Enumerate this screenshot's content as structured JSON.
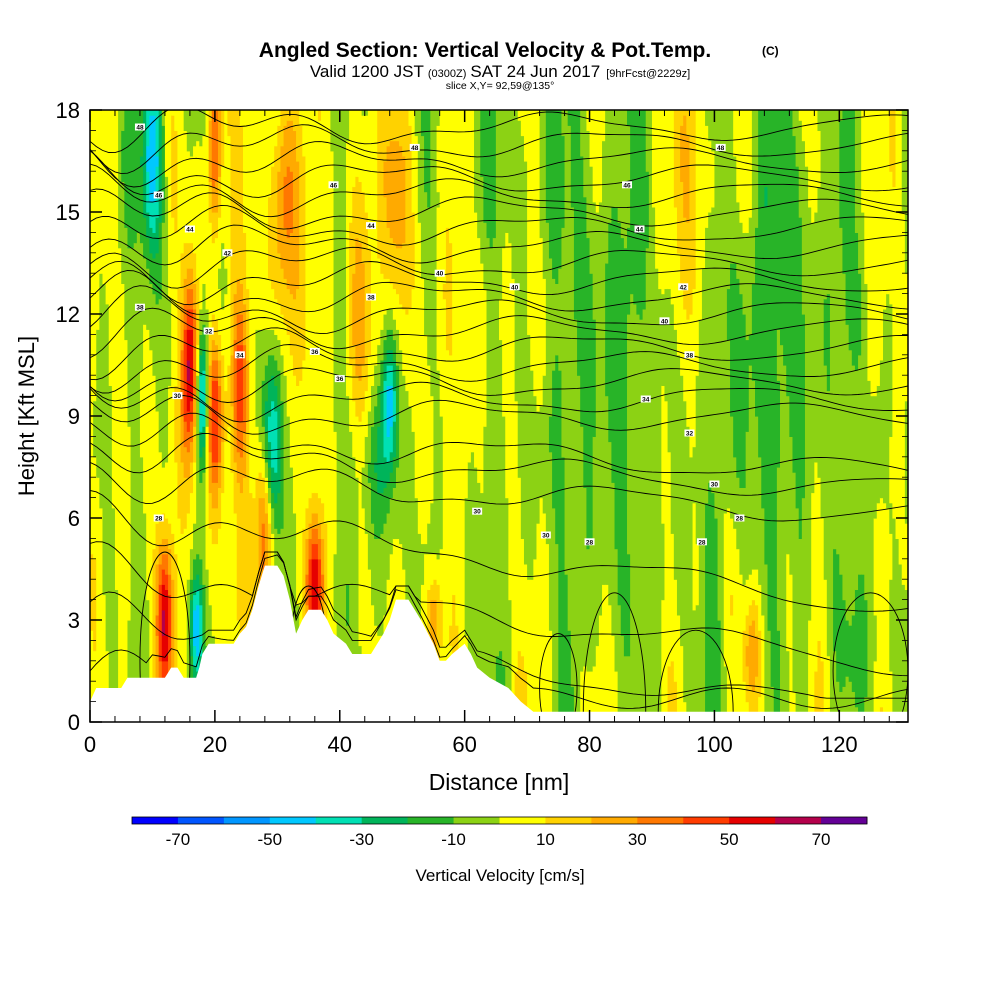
{
  "chart_data": {
    "type": "heatmap",
    "title": "Angled Section: Vertical Velocity & Pot.Temp.",
    "title_units": "(C)",
    "subtitle_prefix": "Valid 1200 JST",
    "subtitle_zulu": "(0300Z)",
    "subtitle_date": "SAT 24 Jun 2017",
    "subtitle_fcst": "[9hrFcst@2229z]",
    "slice_label": "slice X,Y= 92,59@135°",
    "xlabel": "Distance [nm]",
    "ylabel": "Height [Kft MSL]",
    "xlim": [
      0,
      131
    ],
    "ylim": [
      0,
      18
    ],
    "x_ticks": [
      0,
      20,
      40,
      60,
      80,
      100,
      120
    ],
    "y_ticks": [
      0,
      3,
      6,
      9,
      12,
      15,
      18
    ],
    "grid": false,
    "colorbar": {
      "label": "Vertical Velocity [cm/s]",
      "tick_values": [
        -70,
        -50,
        -30,
        -10,
        10,
        30,
        50,
        70
      ],
      "bins": [
        {
          "lo": -80,
          "hi": -70,
          "color": "#0000ff"
        },
        {
          "lo": -70,
          "hi": -60,
          "color": "#0055ff"
        },
        {
          "lo": -60,
          "hi": -50,
          "color": "#0096ff"
        },
        {
          "lo": -50,
          "hi": -40,
          "color": "#00c8ff"
        },
        {
          "lo": -40,
          "hi": -30,
          "color": "#00e0b4"
        },
        {
          "lo": -30,
          "hi": -20,
          "color": "#00b45a"
        },
        {
          "lo": -20,
          "hi": -10,
          "color": "#28b428"
        },
        {
          "lo": -10,
          "hi": 0,
          "color": "#8cd214"
        },
        {
          "lo": 0,
          "hi": 10,
          "color": "#ffff00"
        },
        {
          "lo": 10,
          "hi": 20,
          "color": "#ffd200"
        },
        {
          "lo": 20,
          "hi": 30,
          "color": "#ffaa00"
        },
        {
          "lo": 30,
          "hi": 40,
          "color": "#ff7800"
        },
        {
          "lo": 40,
          "hi": 50,
          "color": "#ff3c00"
        },
        {
          "lo": 50,
          "hi": 60,
          "color": "#e60000"
        },
        {
          "lo": 60,
          "hi": 70,
          "color": "#b4004b"
        },
        {
          "lo": 70,
          "hi": 80,
          "color": "#640096"
        }
      ]
    },
    "velocity_features": [
      {
        "x": 12,
        "z": 3.0,
        "sx": 0.9,
        "sz": 1.6,
        "w": 55
      },
      {
        "x": 10,
        "z": 16.5,
        "sx": 1.2,
        "sz": 2.0,
        "w": -45
      },
      {
        "x": 16,
        "z": 10.5,
        "sx": 1.0,
        "sz": 2.0,
        "w": 65
      },
      {
        "x": 18,
        "z": 9.5,
        "sx": 0.7,
        "sz": 1.5,
        "w": -55
      },
      {
        "x": 20,
        "z": 9.0,
        "sx": 1.0,
        "sz": 1.8,
        "w": 50
      },
      {
        "x": 20,
        "z": 17.0,
        "sx": 0.8,
        "sz": 2.0,
        "w": 55
      },
      {
        "x": 17,
        "z": 2.8,
        "sx": 0.8,
        "sz": 1.2,
        "w": -45
      },
      {
        "x": 24,
        "z": 10.0,
        "sx": 1.0,
        "sz": 2.0,
        "w": 40
      },
      {
        "x": 28,
        "z": 6.0,
        "sx": 1.0,
        "sz": 2.0,
        "w": 50
      },
      {
        "x": 29,
        "z": 8.0,
        "sx": 1.2,
        "sz": 2.0,
        "w": -50
      },
      {
        "x": 31,
        "z": 15.0,
        "sx": 1.8,
        "sz": 3.0,
        "w": 35
      },
      {
        "x": 36,
        "z": 4.0,
        "sx": 1.0,
        "sz": 1.4,
        "w": 55
      },
      {
        "x": 43,
        "z": 12.0,
        "sx": 1.5,
        "sz": 3.0,
        "w": 25
      },
      {
        "x": 48,
        "z": 9.5,
        "sx": 0.9,
        "sz": 1.5,
        "w": -45
      },
      {
        "x": 50,
        "z": 15.0,
        "sx": 1.5,
        "sz": 3.0,
        "w": 25
      },
      {
        "x": 46,
        "z": 7.5,
        "sx": 1.5,
        "sz": 1.5,
        "w": -20
      },
      {
        "x": 55,
        "z": 3.0,
        "sx": 1.0,
        "sz": 1.0,
        "w": 30
      },
      {
        "x": 97,
        "z": 16.0,
        "sx": 2.0,
        "sz": 3.0,
        "w": 25
      },
      {
        "x": 106,
        "z": 2.0,
        "sx": 1.0,
        "sz": 1.2,
        "w": 30
      },
      {
        "x": 82,
        "z": 12.0,
        "sx": 6.0,
        "sz": 4.0,
        "w": -10
      },
      {
        "x": 110,
        "z": 12.0,
        "sx": 6.0,
        "sz": 4.0,
        "w": -10
      },
      {
        "x": 125,
        "z": 2.0,
        "sx": 4.0,
        "sz": 1.5,
        "w": -8
      }
    ],
    "terrain": [
      [
        0,
        0.6
      ],
      [
        1,
        1.0
      ],
      [
        5,
        1.0
      ],
      [
        6,
        1.3
      ],
      [
        12,
        1.3
      ],
      [
        13,
        1.6
      ],
      [
        14,
        1.6
      ],
      [
        15,
        1.3
      ],
      [
        17,
        1.3
      ],
      [
        17.5,
        1.6
      ],
      [
        18,
        2.0
      ],
      [
        19,
        2.3
      ],
      [
        23,
        2.3
      ],
      [
        24,
        2.6
      ],
      [
        25,
        2.8
      ],
      [
        26,
        3.3
      ],
      [
        27,
        4.0
      ],
      [
        28,
        4.6
      ],
      [
        30,
        4.6
      ],
      [
        31,
        4.3
      ],
      [
        32,
        3.6
      ],
      [
        33,
        2.6
      ],
      [
        34,
        3.0
      ],
      [
        35,
        3.3
      ],
      [
        37,
        3.3
      ],
      [
        38,
        3.0
      ],
      [
        39,
        2.6
      ],
      [
        41,
        2.3
      ],
      [
        42,
        2.0
      ],
      [
        45,
        2.0
      ],
      [
        46,
        2.3
      ],
      [
        47,
        2.6
      ],
      [
        48,
        3.0
      ],
      [
        49,
        3.6
      ],
      [
        51,
        3.6
      ],
      [
        52,
        3.3
      ],
      [
        53,
        3.0
      ],
      [
        55,
        2.3
      ],
      [
        56,
        1.8
      ],
      [
        57,
        1.8
      ],
      [
        58,
        2.0
      ],
      [
        60,
        2.3
      ],
      [
        61,
        2.0
      ],
      [
        62,
        1.6
      ],
      [
        64,
        1.3
      ],
      [
        67,
        1.0
      ],
      [
        69,
        0.6
      ],
      [
        71,
        0.3
      ],
      [
        131,
        0.3
      ]
    ],
    "isentropes": {
      "levels_kft_at_left": [
        1.5,
        3.0,
        4.5,
        6.2,
        7.3,
        8.0,
        8.5,
        9.0,
        9.5,
        10.0,
        10.5,
        11.0,
        11.5,
        12.0,
        12.5,
        13.0,
        13.5,
        14.0,
        14.5,
        15.0,
        15.5,
        16.0,
        16.5,
        17.0,
        17.5
      ],
      "labels": [
        {
          "x": 11,
          "z": 6.0,
          "text": "28"
        },
        {
          "x": 14,
          "z": 9.6,
          "text": "30"
        },
        {
          "x": 19,
          "z": 11.5,
          "text": "32"
        },
        {
          "x": 24,
          "z": 10.8,
          "text": "34"
        },
        {
          "x": 8,
          "z": 12.2,
          "text": "38"
        },
        {
          "x": 22,
          "z": 13.8,
          "text": "42"
        },
        {
          "x": 16,
          "z": 14.5,
          "text": "44"
        },
        {
          "x": 11,
          "z": 15.5,
          "text": "46"
        },
        {
          "x": 8,
          "z": 17.5,
          "text": "48"
        },
        {
          "x": 36,
          "z": 10.9,
          "text": "36"
        },
        {
          "x": 40,
          "z": 10.1,
          "text": "36"
        },
        {
          "x": 45,
          "z": 12.5,
          "text": "38"
        },
        {
          "x": 56,
          "z": 13.2,
          "text": "40"
        },
        {
          "x": 45,
          "z": 14.6,
          "text": "44"
        },
        {
          "x": 39,
          "z": 15.8,
          "text": "46"
        },
        {
          "x": 52,
          "z": 16.9,
          "text": "48"
        },
        {
          "x": 73,
          "z": 5.5,
          "text": "30"
        },
        {
          "x": 62,
          "z": 6.2,
          "text": "30"
        },
        {
          "x": 68,
          "z": 12.8,
          "text": "40"
        },
        {
          "x": 92,
          "z": 11.8,
          "text": "40"
        },
        {
          "x": 95,
          "z": 12.8,
          "text": "42"
        },
        {
          "x": 88,
          "z": 14.5,
          "text": "44"
        },
        {
          "x": 86,
          "z": 15.8,
          "text": "46"
        },
        {
          "x": 101,
          "z": 16.9,
          "text": "48"
        },
        {
          "x": 96,
          "z": 10.8,
          "text": "38"
        },
        {
          "x": 89,
          "z": 9.5,
          "text": "34"
        },
        {
          "x": 96,
          "z": 8.5,
          "text": "32"
        },
        {
          "x": 100,
          "z": 7.0,
          "text": "30"
        },
        {
          "x": 104,
          "z": 6.0,
          "text": "28"
        },
        {
          "x": 98,
          "z": 5.3,
          "text": "28"
        },
        {
          "x": 80,
          "z": 5.3,
          "text": "28"
        }
      ]
    }
  }
}
